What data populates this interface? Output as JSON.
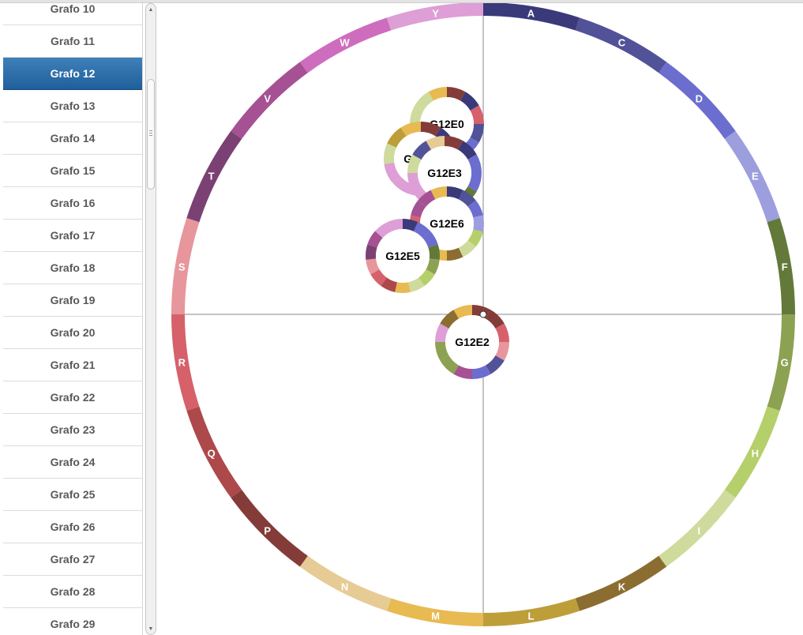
{
  "sidebar": {
    "items": [
      {
        "label": "Grafo 10"
      },
      {
        "label": "Grafo 11"
      },
      {
        "label": "Grafo 12",
        "selected": true
      },
      {
        "label": "Grafo 13"
      },
      {
        "label": "Grafo 14"
      },
      {
        "label": "Grafo 15"
      },
      {
        "label": "Grafo 16"
      },
      {
        "label": "Grafo 17"
      },
      {
        "label": "Grafo 18"
      },
      {
        "label": "Grafo 19"
      },
      {
        "label": "Grafo 20"
      },
      {
        "label": "Grafo 21"
      },
      {
        "label": "Grafo 22"
      },
      {
        "label": "Grafo 23"
      },
      {
        "label": "Grafo 24"
      },
      {
        "label": "Grafo 25"
      },
      {
        "label": "Grafo 26"
      },
      {
        "label": "Grafo 27"
      },
      {
        "label": "Grafo 28"
      },
      {
        "label": "Grafo 29"
      }
    ],
    "selected_color": "#2a6aa7"
  },
  "ring": {
    "segments": [
      {
        "label": "A",
        "color": "#3a3a7a"
      },
      {
        "label": "C",
        "color": "#525299"
      },
      {
        "label": "D",
        "color": "#6b6ecf"
      },
      {
        "label": "E",
        "color": "#9c9ede"
      },
      {
        "label": "F",
        "color": "#637939"
      },
      {
        "label": "G",
        "color": "#8ca252"
      },
      {
        "label": "H",
        "color": "#b5cf6b"
      },
      {
        "label": "I",
        "color": "#cedb9c"
      },
      {
        "label": "K",
        "color": "#8c6d31"
      },
      {
        "label": "L",
        "color": "#bd9e39"
      },
      {
        "label": "M",
        "color": "#e7ba52"
      },
      {
        "label": "N",
        "color": "#e7cb94"
      },
      {
        "label": "P",
        "color": "#843c39"
      },
      {
        "label": "Q",
        "color": "#ad494a"
      },
      {
        "label": "R",
        "color": "#d6616b"
      },
      {
        "label": "S",
        "color": "#e7969c"
      },
      {
        "label": "T",
        "color": "#7b4173"
      },
      {
        "label": "V",
        "color": "#a55194"
      },
      {
        "label": "W",
        "color": "#ce6dbd"
      },
      {
        "label": "Y",
        "color": "#de9ed6"
      }
    ]
  },
  "nodes": [
    {
      "label": "G12E0",
      "colors": [
        "#843c39",
        "#3a3a7a",
        "#d6616b",
        "#525299",
        "#6b6ecf",
        "#cedb9c",
        "#ce6dbd",
        "#de9ed6",
        "#de9ed6",
        "#cedb9c",
        "#cedb9c",
        "#e7ba52"
      ]
    },
    {
      "label": "G12E1",
      "colors": [
        "#843c39",
        "#3a3a7a",
        "#ad494a",
        "#e7969c",
        "#de9ed6",
        "#de9ed6",
        "#de9ed6",
        "#de9ed6",
        "#cedb9c",
        "#bd9e39",
        "#e7ba52"
      ]
    },
    {
      "label": "G12E3",
      "colors": [
        "#843c39",
        "#3a3a7a",
        "#6b6ecf",
        "#6b6ecf",
        "#637939",
        "#8ca252",
        "#8ca252",
        "#de9ed6",
        "#de9ed6",
        "#cedb9c",
        "#525299",
        "#e7cb94"
      ]
    },
    {
      "label": "G12E6",
      "colors": [
        "#3a3a7a",
        "#525299",
        "#6b6ecf",
        "#9c9ede",
        "#b5cf6b",
        "#cedb9c",
        "#8c6d31",
        "#e7ba52",
        "#e7cb94",
        "#ad494a",
        "#d6616b",
        "#a55194",
        "#a55194",
        "#e7ba52"
      ]
    },
    {
      "label": "G12E5",
      "colors": [
        "#3a3a7a",
        "#6b6ecf",
        "#6b6ecf",
        "#637939",
        "#8ca252",
        "#b5cf6b",
        "#cedb9c",
        "#e7ba52",
        "#ad494a",
        "#d6616b",
        "#e7969c",
        "#7b4173",
        "#a55194",
        "#de9ed6",
        "#de9ed6"
      ]
    },
    {
      "label": "G12E2",
      "colors": [
        "#843c39",
        "#843c39",
        "#d6616b",
        "#e7969c",
        "#525299",
        "#6b6ecf",
        "#a55194",
        "#8ca252",
        "#8ca252",
        "#de9ed6",
        "#8c6d31",
        "#e7ba52"
      ]
    }
  ]
}
